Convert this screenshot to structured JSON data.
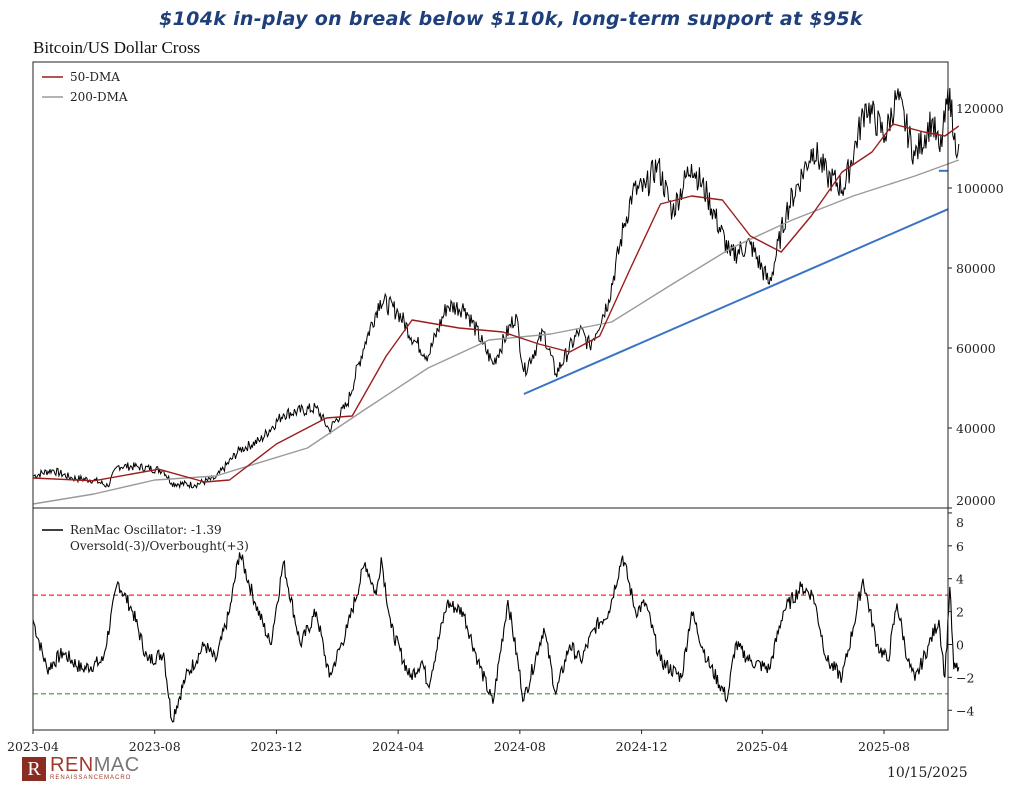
{
  "headline": "$104k in-play on break below $110k, long-term support at $95k",
  "date_stamp": "10/15/2025",
  "logo": {
    "name": "RENMAC",
    "ren": "REN",
    "mac": "MAC",
    "tagline": "RENAISSANCEMACRO",
    "mark": "R"
  },
  "colors": {
    "price": "#000000",
    "dma50": "#9b1c1c",
    "dma200": "#9a9a9a",
    "trend": "#3a74c4",
    "oversold": "#2ca02c",
    "overbought": "#ff2a2a",
    "osc": "#000000"
  },
  "chart_data": [
    {
      "type": "line",
      "title": "Bitcoin/US Dollar Cross",
      "ylim": [
        20000,
        131500
      ],
      "xlim": [
        "2023-04-01",
        "2025-11-15"
      ],
      "yticks": [
        "120000",
        "100000",
        "80000",
        "60000",
        "40000",
        "20000"
      ],
      "ytick_values": [
        120000,
        100000,
        80000,
        60000,
        40000,
        20000
      ],
      "legend": {
        "placement": "top-left",
        "entries": [
          "50-DMA",
          "200-DMA"
        ]
      },
      "series": [
        {
          "name": "Price",
          "points": [
            [
              "2023-04-01",
              28000
            ],
            [
              "2023-04-20",
              29500
            ],
            [
              "2023-05-10",
              27500
            ],
            [
              "2023-06-01",
              27000
            ],
            [
              "2023-06-15",
              25500
            ],
            [
              "2023-06-25",
              30500
            ],
            [
              "2023-07-15",
              30300
            ],
            [
              "2023-08-10",
              29400
            ],
            [
              "2023-08-18",
              26200
            ],
            [
              "2023-09-10",
              25800
            ],
            [
              "2023-10-01",
              27500
            ],
            [
              "2023-10-25",
              34500
            ],
            [
              "2023-11-15",
              37000
            ],
            [
              "2023-12-08",
              43500
            ],
            [
              "2024-01-10",
              45000
            ],
            [
              "2024-01-23",
              39500
            ],
            [
              "2024-02-10",
              46000
            ],
            [
              "2024-02-28",
              61500
            ],
            [
              "2024-03-14",
              72000
            ],
            [
              "2024-04-01",
              69000
            ],
            [
              "2024-04-17",
              62000
            ],
            [
              "2024-05-01",
              58000
            ],
            [
              "2024-05-20",
              70500
            ],
            [
              "2024-06-07",
              70000
            ],
            [
              "2024-06-25",
              61000
            ],
            [
              "2024-07-05",
              56000
            ],
            [
              "2024-07-28",
              68500
            ],
            [
              "2024-08-05",
              54000
            ],
            [
              "2024-08-25",
              64000
            ],
            [
              "2024-09-06",
              53500
            ],
            [
              "2024-09-30",
              64500
            ],
            [
              "2024-10-10",
              60500
            ],
            [
              "2024-10-29",
              72000
            ],
            [
              "2024-11-13",
              90000
            ],
            [
              "2024-11-22",
              99000
            ],
            [
              "2024-12-05",
              100000
            ],
            [
              "2024-12-17",
              106000
            ],
            [
              "2025-01-01",
              94000
            ],
            [
              "2025-01-20",
              106000
            ],
            [
              "2025-02-05",
              98000
            ],
            [
              "2025-02-28",
              83000
            ],
            [
              "2025-03-20",
              86000
            ],
            [
              "2025-04-08",
              76000
            ],
            [
              "2025-04-25",
              94000
            ],
            [
              "2025-05-22",
              110000
            ],
            [
              "2025-06-05",
              103000
            ],
            [
              "2025-06-22",
              100000
            ],
            [
              "2025-07-14",
              121000
            ],
            [
              "2025-08-02",
              113000
            ],
            [
              "2025-08-14",
              123000
            ],
            [
              "2025-09-01",
              108000
            ],
            [
              "2025-09-18",
              117000
            ],
            [
              "2025-09-26",
              109000
            ],
            [
              "2025-10-06",
              125000
            ],
            [
              "2025-10-10",
              112000
            ],
            [
              "2025-10-15",
              111000
            ]
          ]
        },
        {
          "name": "50-DMA",
          "points": [
            [
              "2023-04-01",
              27500
            ],
            [
              "2023-06-01",
              26800
            ],
            [
              "2023-08-05",
              29700
            ],
            [
              "2023-09-20",
              26500
            ],
            [
              "2023-10-15",
              27000
            ],
            [
              "2023-12-01",
              36000
            ],
            [
              "2024-01-20",
              42500
            ],
            [
              "2024-02-15",
              43000
            ],
            [
              "2024-03-20",
              58000
            ],
            [
              "2024-04-15",
              67000
            ],
            [
              "2024-06-01",
              65000
            ],
            [
              "2024-07-15",
              64000
            ],
            [
              "2024-08-20",
              61000
            ],
            [
              "2024-09-20",
              59000
            ],
            [
              "2024-10-20",
              63000
            ],
            [
              "2024-11-20",
              80000
            ],
            [
              "2024-12-20",
              96000
            ],
            [
              "2025-01-20",
              98000
            ],
            [
              "2025-02-20",
              97000
            ],
            [
              "2025-03-20",
              88000
            ],
            [
              "2025-04-20",
              84000
            ],
            [
              "2025-05-20",
              93000
            ],
            [
              "2025-06-20",
              104000
            ],
            [
              "2025-07-20",
              109000
            ],
            [
              "2025-08-10",
              116000
            ],
            [
              "2025-09-10",
              114000
            ],
            [
              "2025-10-01",
              113000
            ],
            [
              "2025-10-15",
              115500
            ]
          ]
        },
        {
          "name": "200-DMA",
          "points": [
            [
              "2023-04-01",
              21000
            ],
            [
              "2023-06-01",
              23500
            ],
            [
              "2023-08-01",
              27000
            ],
            [
              "2023-10-01",
              28000
            ],
            [
              "2024-01-01",
              35000
            ],
            [
              "2024-03-01",
              45000
            ],
            [
              "2024-05-01",
              55000
            ],
            [
              "2024-07-01",
              62000
            ],
            [
              "2024-09-01",
              63500
            ],
            [
              "2024-11-01",
              66500
            ],
            [
              "2025-01-01",
              76000
            ],
            [
              "2025-03-01",
              85000
            ],
            [
              "2025-05-01",
              92000
            ],
            [
              "2025-07-01",
              98000
            ],
            [
              "2025-09-01",
              103000
            ],
            [
              "2025-10-15",
              107000
            ]
          ]
        },
        {
          "name": "Trendline support",
          "points": [
            [
              "2024-08-05",
              48500
            ],
            [
              "2025-11-01",
              94700
            ]
          ]
        },
        {
          "name": "Support $104k",
          "points": [
            [
              "2025-09-25",
              104300
            ],
            [
              "2025-11-15",
              104300
            ]
          ]
        }
      ]
    },
    {
      "type": "line",
      "title": "RenMac Oscillator",
      "ylim": [
        -5.2,
        8.3
      ],
      "yticks": [
        "8",
        "6",
        "4",
        "2",
        "0",
        "−2",
        "−4"
      ],
      "ytick_values": [
        8,
        6,
        4,
        2,
        0,
        -2,
        -4
      ],
      "xticks": [
        "2023-04",
        "2023-08",
        "2023-12",
        "2024-04",
        "2024-08",
        "2024-12",
        "2025-04",
        "2025-08"
      ],
      "xtick_values": [
        "2023-04-01",
        "2023-08-01",
        "2023-12-01",
        "2024-04-01",
        "2024-08-01",
        "2024-12-01",
        "2025-04-01",
        "2025-08-01"
      ],
      "legend": {
        "placement": "top-left",
        "entries": [
          "RenMac Oscillator: -1.39",
          "Oversold(-3)/Overbought(+3)"
        ]
      },
      "thresholds": {
        "oversold": -3,
        "overbought": 3
      },
      "last_value": -1.39,
      "series": [
        {
          "name": "RenMac Oscillator",
          "points": [
            [
              "2023-04-01",
              1.5
            ],
            [
              "2023-04-15",
              -1.5
            ],
            [
              "2023-05-01",
              -0.5
            ],
            [
              "2023-05-20",
              -1.5
            ],
            [
              "2023-06-10",
              -1
            ],
            [
              "2023-06-25",
              3.8
            ],
            [
              "2023-07-10",
              2
            ],
            [
              "2023-07-25",
              -1
            ],
            [
              "2023-08-10",
              -0.5
            ],
            [
              "2023-08-18",
              -4.6
            ],
            [
              "2023-09-01",
              -2
            ],
            [
              "2023-09-20",
              0
            ],
            [
              "2023-10-01",
              -1
            ],
            [
              "2023-10-15",
              2
            ],
            [
              "2023-10-25",
              5.6
            ],
            [
              "2023-11-10",
              2.5
            ],
            [
              "2023-11-25",
              0
            ],
            [
              "2023-12-08",
              5
            ],
            [
              "2023-12-25",
              0
            ],
            [
              "2024-01-10",
              2
            ],
            [
              "2024-01-23",
              -2
            ],
            [
              "2024-02-10",
              1
            ],
            [
              "2024-02-28",
              5
            ],
            [
              "2024-03-10",
              3
            ],
            [
              "2024-03-15",
              5.3
            ],
            [
              "2024-03-25",
              1
            ],
            [
              "2024-04-13",
              -2
            ],
            [
              "2024-04-25",
              -1
            ],
            [
              "2024-05-01",
              -2.5
            ],
            [
              "2024-05-20",
              2.5
            ],
            [
              "2024-06-05",
              2
            ],
            [
              "2024-06-20",
              -1
            ],
            [
              "2024-07-05",
              -3.6
            ],
            [
              "2024-07-20",
              2.7
            ],
            [
              "2024-08-05",
              -3.4
            ],
            [
              "2024-08-25",
              1
            ],
            [
              "2024-09-06",
              -3
            ],
            [
              "2024-09-20",
              0
            ],
            [
              "2024-10-01",
              -1
            ],
            [
              "2024-10-15",
              1
            ],
            [
              "2024-10-29",
              2
            ],
            [
              "2024-11-12",
              5.4
            ],
            [
              "2024-11-25",
              2
            ],
            [
              "2024-12-05",
              2.5
            ],
            [
              "2024-12-20",
              -1
            ],
            [
              "2025-01-10",
              -2
            ],
            [
              "2025-01-20",
              2
            ],
            [
              "2025-02-05",
              -1
            ],
            [
              "2025-02-25",
              -3.3
            ],
            [
              "2025-03-05",
              0
            ],
            [
              "2025-03-20",
              -1
            ],
            [
              "2025-04-08",
              -1.5
            ],
            [
              "2025-04-22",
              2
            ],
            [
              "2025-05-10",
              3.5
            ],
            [
              "2025-05-22",
              3
            ],
            [
              "2025-06-05",
              -1
            ],
            [
              "2025-06-20",
              -2
            ],
            [
              "2025-07-01",
              1
            ],
            [
              "2025-07-11",
              4
            ],
            [
              "2025-07-25",
              0
            ],
            [
              "2025-08-05",
              -1
            ],
            [
              "2025-08-14",
              2.5
            ],
            [
              "2025-08-25",
              -1
            ],
            [
              "2025-09-01",
              -2.2
            ],
            [
              "2025-09-15",
              0
            ],
            [
              "2025-09-25",
              1.5
            ],
            [
              "2025-10-01",
              -2
            ],
            [
              "2025-10-06",
              3.5
            ],
            [
              "2025-10-10",
              -1.5
            ],
            [
              "2025-10-15",
              -1.39
            ]
          ]
        }
      ]
    }
  ]
}
